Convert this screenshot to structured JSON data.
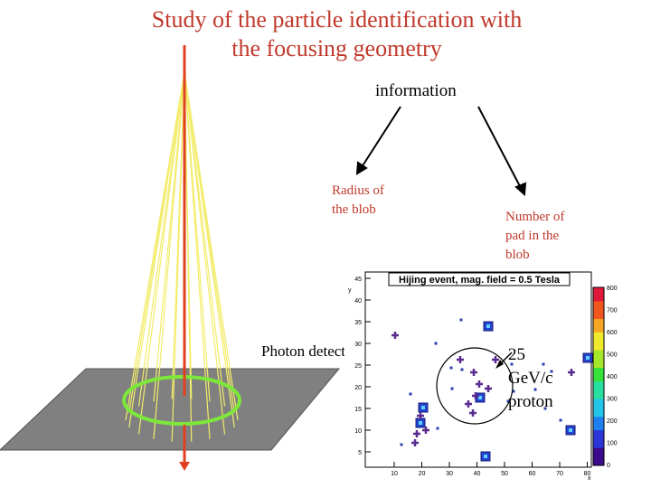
{
  "title_line1": "Study of the particle identification with",
  "title_line2": "the focusing geometry",
  "information": "information",
  "radius_label": [
    "Radius of",
    "the blob"
  ],
  "npad_label": [
    "Number of",
    "pad in the",
    "blob"
  ],
  "photon_label": "Photon detector",
  "proton_label": [
    "25",
    "GeV/c",
    "proton"
  ],
  "colors": {
    "title": "#c0392b",
    "beam": "#e0401f",
    "cone": "#f2ec6a",
    "ring": "#7de83a",
    "plane": "#808080"
  },
  "plot": {
    "title": "Hijing event, mag. field = 0.5 Tesla",
    "x_axis_label": "x",
    "y_axis_label": "y",
    "x_ticks": [
      "10",
      "20",
      "30",
      "40",
      "50",
      "60",
      "70",
      "80"
    ],
    "y_ticks": [
      "5",
      "10",
      "15",
      "20",
      "25",
      "30",
      "35",
      "40",
      "45"
    ],
    "colorbar_ticks": [
      "0",
      "100",
      "200",
      "300",
      "400",
      "500",
      "600",
      "700",
      "800"
    ]
  }
}
